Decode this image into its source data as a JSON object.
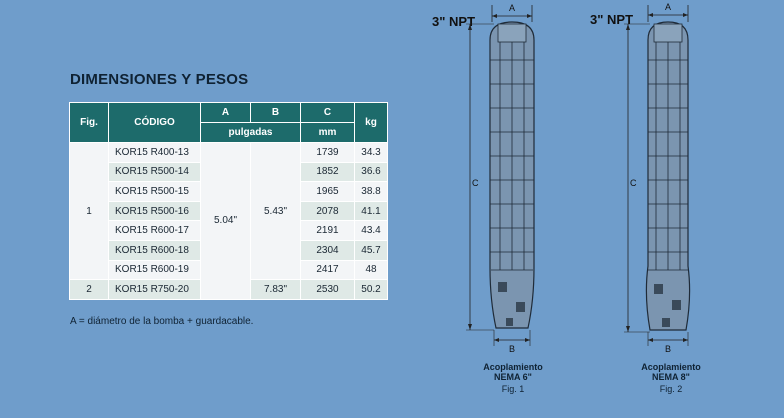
{
  "title": "DIMENSIONES Y PESOS",
  "table": {
    "headers": {
      "fig": "Fig.",
      "codigo": "CÓDIGO",
      "a": "A",
      "b": "B",
      "c": "C",
      "kg": "kg",
      "pulgadas": "pulgadas",
      "mm": "mm"
    },
    "fig1": "1",
    "fig2": "2",
    "a_value": "5.04\"",
    "b_value_fig1": "5.43\"",
    "b_value_fig2": "7.83\"",
    "rows": [
      {
        "code": "KOR15 R400-13",
        "c": "1739",
        "kg": "34.3"
      },
      {
        "code": "KOR15 R500-14",
        "c": "1852",
        "kg": "36.6"
      },
      {
        "code": "KOR15 R500-15",
        "c": "1965",
        "kg": "38.8"
      },
      {
        "code": "KOR15 R500-16",
        "c": "2078",
        "kg": "41.1"
      },
      {
        "code": "KOR15 R600-17",
        "c": "2191",
        "kg": "43.4"
      },
      {
        "code": "KOR15 R600-18",
        "c": "2304",
        "kg": "45.7"
      },
      {
        "code": "KOR15 R600-19",
        "c": "2417",
        "kg": "48"
      },
      {
        "code": "KOR15 R750-20",
        "c": "2530",
        "kg": "50.2"
      }
    ]
  },
  "note": "A = diámetro de la bomba + guardacable.",
  "figures": [
    {
      "npt": "3\" NPT",
      "label_a": "A",
      "label_b": "B",
      "label_c": "C",
      "caption1": "Acoplamiento",
      "caption2": "NEMA 6\"",
      "caption3": "Fig. 1"
    },
    {
      "npt": "3\" NPT",
      "label_a": "A",
      "label_b": "B",
      "label_c": "C",
      "caption1": "Acoplamiento",
      "caption2": "NEMA 8\"",
      "caption3": "Fig. 2"
    }
  ]
}
